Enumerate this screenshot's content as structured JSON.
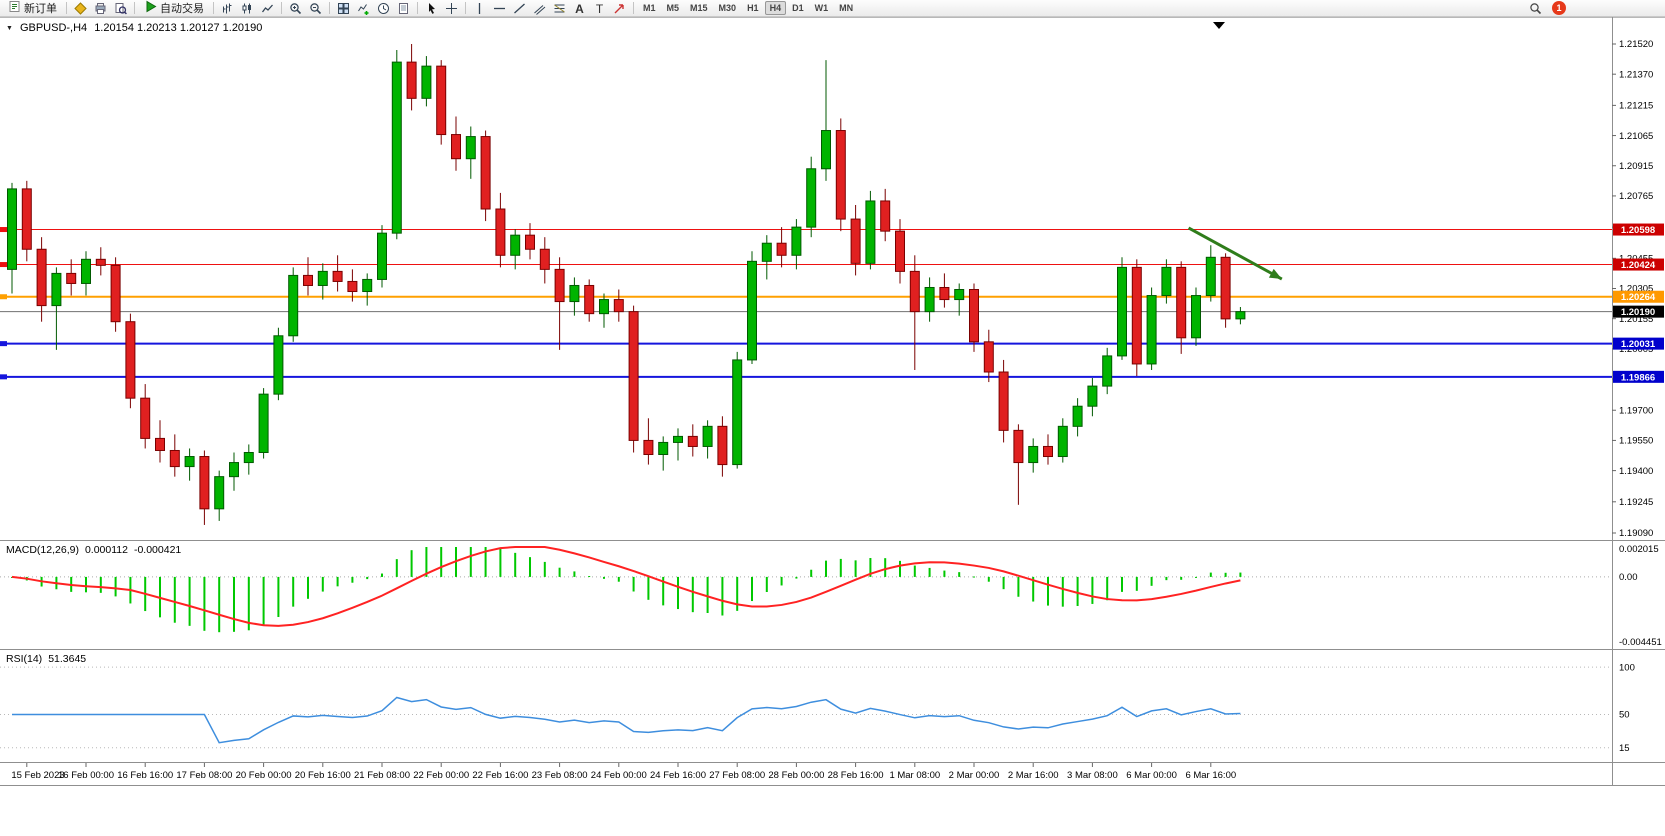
{
  "toolbar": {
    "new_order_label": "新订单",
    "autotrade_label": "自动交易",
    "timeframes": [
      "M1",
      "M5",
      "M15",
      "M30",
      "H1",
      "H4",
      "D1",
      "W1",
      "MN"
    ],
    "active_timeframe": "H4",
    "notification_count": "1",
    "items": [
      {
        "type": "button",
        "name": "new-order-button",
        "icon": "new-order-icon",
        "label_key": "new_order_label"
      },
      {
        "type": "sep"
      },
      {
        "type": "icon",
        "name": "favorites-icon"
      },
      {
        "type": "icon",
        "name": "print-icon"
      },
      {
        "type": "icon",
        "name": "preview-icon"
      },
      {
        "type": "sep"
      },
      {
        "type": "button",
        "name": "autotrade-button",
        "icon": "play-icon",
        "label_key": "autotrade_label"
      },
      {
        "type": "sep"
      },
      {
        "type": "icon",
        "name": "bar-chart-icon"
      },
      {
        "type": "icon",
        "name": "candlestick-chart-icon"
      },
      {
        "type": "icon",
        "name": "line-chart-icon"
      },
      {
        "type": "sep"
      },
      {
        "type": "icon",
        "name": "zoom-in-icon"
      },
      {
        "type": "icon",
        "name": "zoom-out-icon"
      },
      {
        "type": "sep"
      },
      {
        "type": "icon",
        "name": "tile-windows-icon"
      },
      {
        "type": "icon",
        "name": "indicators-icon"
      },
      {
        "type": "icon",
        "name": "periods-icon"
      },
      {
        "type": "icon",
        "name": "templates-icon"
      },
      {
        "type": "sep"
      },
      {
        "type": "icon",
        "name": "cursor-icon"
      },
      {
        "type": "icon",
        "name": "crosshair-icon"
      },
      {
        "type": "sep"
      },
      {
        "type": "icon",
        "name": "vertical-line-icon"
      },
      {
        "type": "icon",
        "name": "horizontal-line-icon"
      },
      {
        "type": "icon",
        "name": "trendline-icon"
      },
      {
        "type": "icon",
        "name": "channel-icon"
      },
      {
        "type": "icon",
        "name": "fibonacci-icon"
      },
      {
        "type": "icon",
        "name": "text-icon"
      },
      {
        "type": "icon",
        "name": "label-icon"
      },
      {
        "type": "icon",
        "name": "arrows-icon"
      },
      {
        "type": "sep"
      }
    ]
  },
  "chart": {
    "symbol": "GBPUSD-,H4",
    "ohlc": "1.20154 1.20213 1.20127 1.20190"
  },
  "chart_data": {
    "type": "candlestick",
    "symbol": "GBPUSD",
    "timeframe": "H4",
    "x_labels": [
      "15 Feb 2023",
      "16 Feb 00:00",
      "16 Feb 16:00",
      "17 Feb 08:00",
      "20 Feb 00:00",
      "20 Feb 16:00",
      "21 Feb 08:00",
      "22 Feb 00:00",
      "22 Feb 16:00",
      "23 Feb 08:00",
      "24 Feb 00:00",
      "24 Feb 16:00",
      "27 Feb 08:00",
      "28 Feb 00:00",
      "28 Feb 16:00",
      "1 Mar 08:00",
      "2 Mar 00:00",
      "2 Mar 16:00",
      "3 Mar 08:00",
      "6 Mar 00:00",
      "6 Mar 16:00"
    ],
    "label_start_index": 1,
    "label_every": 4,
    "candles": [
      [
        1.204,
        1.2083,
        1.2028,
        1.208
      ],
      [
        1.208,
        1.2084,
        1.2044,
        1.205
      ],
      [
        1.205,
        1.2056,
        1.2014,
        1.2022
      ],
      [
        1.2022,
        1.2041,
        1.2,
        1.2038
      ],
      [
        1.2038,
        1.2045,
        1.2027,
        1.2033
      ],
      [
        1.2033,
        1.2049,
        1.2027,
        1.2045
      ],
      [
        1.2045,
        1.2051,
        1.2037,
        1.2042
      ],
      [
        1.2042,
        1.2046,
        1.2009,
        1.2014
      ],
      [
        1.2014,
        1.2018,
        1.1971,
        1.1976
      ],
      [
        1.1976,
        1.1983,
        1.1951,
        1.1956
      ],
      [
        1.1956,
        1.1965,
        1.1944,
        1.195
      ],
      [
        1.195,
        1.1958,
        1.1937,
        1.1942
      ],
      [
        1.1942,
        1.1951,
        1.1935,
        1.1947
      ],
      [
        1.1947,
        1.195,
        1.1913,
        1.1921
      ],
      [
        1.1921,
        1.194,
        1.1915,
        1.1937
      ],
      [
        1.1937,
        1.1949,
        1.193,
        1.1944
      ],
      [
        1.1944,
        1.1953,
        1.1938,
        1.1949
      ],
      [
        1.1949,
        1.1981,
        1.1946,
        1.1978
      ],
      [
        1.1978,
        1.2011,
        1.1975,
        1.2007
      ],
      [
        1.2007,
        1.2041,
        1.2004,
        1.2037
      ],
      [
        1.2037,
        1.2046,
        1.2027,
        1.2032
      ],
      [
        1.2032,
        1.2043,
        1.2025,
        1.2039
      ],
      [
        1.2039,
        1.2047,
        1.2029,
        1.2034
      ],
      [
        1.2034,
        1.204,
        1.2024,
        1.2029
      ],
      [
        1.2029,
        1.2038,
        1.2022,
        1.2035
      ],
      [
        1.2035,
        1.2062,
        1.2031,
        1.2058
      ],
      [
        1.2058,
        1.2149,
        1.2055,
        1.2143
      ],
      [
        1.2143,
        1.2152,
        1.2119,
        1.2125
      ],
      [
        1.2125,
        1.2146,
        1.2121,
        1.2141
      ],
      [
        1.2141,
        1.2144,
        1.2102,
        1.2107
      ],
      [
        1.2107,
        1.2116,
        1.2089,
        1.2095
      ],
      [
        1.2095,
        1.2111,
        1.2085,
        1.2106
      ],
      [
        1.2106,
        1.2109,
        1.2064,
        1.207
      ],
      [
        1.207,
        1.2078,
        1.2041,
        1.2047
      ],
      [
        1.2047,
        1.206,
        1.204,
        1.2057
      ],
      [
        1.2057,
        1.2063,
        1.2045,
        1.205
      ],
      [
        1.205,
        1.2056,
        1.2033,
        1.204
      ],
      [
        1.204,
        1.2046,
        1.2,
        1.2024
      ],
      [
        1.2024,
        1.2036,
        1.2017,
        1.2032
      ],
      [
        1.2032,
        1.2035,
        1.2014,
        1.2018
      ],
      [
        1.2018,
        1.2028,
        1.2011,
        1.2025
      ],
      [
        1.2025,
        1.203,
        1.2014,
        1.2019
      ],
      [
        1.2019,
        1.2022,
        1.1949,
        1.1955
      ],
      [
        1.1955,
        1.1966,
        1.1943,
        1.1948
      ],
      [
        1.1948,
        1.1957,
        1.194,
        1.1954
      ],
      [
        1.1954,
        1.1961,
        1.1945,
        1.1957
      ],
      [
        1.1957,
        1.1963,
        1.1947,
        1.1952
      ],
      [
        1.1952,
        1.1965,
        1.1946,
        1.1962
      ],
      [
        1.1962,
        1.1967,
        1.1937,
        1.1943
      ],
      [
        1.1943,
        1.1999,
        1.1941,
        1.1995
      ],
      [
        1.1995,
        1.2049,
        1.1993,
        1.2044
      ],
      [
        1.2044,
        1.2057,
        1.2035,
        1.2053
      ],
      [
        1.2053,
        1.2061,
        1.2041,
        1.2047
      ],
      [
        1.2047,
        1.2065,
        1.204,
        1.2061
      ],
      [
        1.2061,
        1.2096,
        1.2056,
        1.209
      ],
      [
        1.209,
        1.2144,
        1.2084,
        1.2109
      ],
      [
        1.2109,
        1.2115,
        1.2059,
        1.2065
      ],
      [
        1.2065,
        1.2072,
        1.2037,
        1.2043
      ],
      [
        1.2043,
        1.2079,
        1.204,
        1.2074
      ],
      [
        1.2074,
        1.208,
        1.2054,
        1.2059
      ],
      [
        1.2059,
        1.2065,
        1.2033,
        1.2039
      ],
      [
        1.2039,
        1.2047,
        1.199,
        1.2019
      ],
      [
        1.2019,
        1.2036,
        1.2014,
        1.2031
      ],
      [
        1.2031,
        1.2038,
        1.2021,
        1.2025
      ],
      [
        1.2025,
        1.2033,
        1.2017,
        1.203
      ],
      [
        1.203,
        1.2033,
        1.1999,
        1.2004
      ],
      [
        1.2004,
        1.201,
        1.1984,
        1.1989
      ],
      [
        1.1989,
        1.1995,
        1.1954,
        1.196
      ],
      [
        1.196,
        1.1963,
        1.1923,
        1.1944
      ],
      [
        1.1944,
        1.1956,
        1.1939,
        1.1952
      ],
      [
        1.1952,
        1.1958,
        1.1943,
        1.1947
      ],
      [
        1.1947,
        1.1966,
        1.1944,
        1.1962
      ],
      [
        1.1962,
        1.1976,
        1.1957,
        1.1972
      ],
      [
        1.1972,
        1.1986,
        1.1967,
        1.1982
      ],
      [
        1.1982,
        1.2001,
        1.1978,
        1.1997
      ],
      [
        1.1997,
        1.2046,
        1.1995,
        1.2041
      ],
      [
        1.2041,
        1.2045,
        1.1987,
        1.1993
      ],
      [
        1.1993,
        1.2031,
        1.199,
        1.2027
      ],
      [
        1.2027,
        1.2045,
        1.2023,
        1.2041
      ],
      [
        1.2041,
        1.2044,
        1.1998,
        1.2006
      ],
      [
        1.2006,
        1.2031,
        1.2002,
        1.2027
      ],
      [
        1.2027,
        1.2052,
        1.2024,
        1.2046
      ],
      [
        1.2046,
        1.2048,
        1.2011,
        1.20154
      ],
      [
        1.20154,
        1.20213,
        1.20127,
        1.2019
      ]
    ],
    "y_axis": {
      "ticks": [
        "1.21520",
        "1.21370",
        "1.21215",
        "1.21065",
        "1.20915",
        "1.20765",
        "1.20610",
        "1.20455",
        "1.20305",
        "1.20155",
        "1.20005",
        "1.19855",
        "1.19700",
        "1.19550",
        "1.19400",
        "1.19245",
        "1.19090"
      ]
    },
    "hlines": [
      {
        "price": 1.20598,
        "color": "#EE1111",
        "width": 1,
        "label": "1.20598",
        "box": "#CC0000"
      },
      {
        "price": 1.20424,
        "color": "#EE1111",
        "width": 1,
        "label": "1.20424",
        "box": "#CC0000"
      },
      {
        "price": 1.20264,
        "color": "#FFA000",
        "width": 2,
        "label": "1.20264",
        "box": "#FF9900"
      },
      {
        "price": 1.20031,
        "color": "#1515DD",
        "width": 2,
        "label": "1.20031",
        "box": "#0000CC"
      },
      {
        "price": 1.19866,
        "color": "#1515DD",
        "width": 2,
        "label": "1.19866",
        "box": "#0000CC"
      }
    ],
    "current_price": {
      "price": 1.2019,
      "label": "1.20190",
      "box": "#000000",
      "color": "#707070"
    },
    "arrow": {
      "bar1": 79.5,
      "price1": 1.20606,
      "bar2": 85.8,
      "price2": 1.20352,
      "color": "#2F7D1B"
    },
    "colors": {
      "up": "#00B400",
      "up_edge": "#005a00",
      "down": "#E02020",
      "down_edge": "#7a0000"
    },
    "macd": {
      "label": "MACD(12,26,9)",
      "value": "0.000112",
      "signal_value": "-0.000421",
      "fast": 12,
      "slow": 26,
      "signal": 9,
      "axis_labels": [
        "0.002015",
        "0.00",
        "-0.004451"
      ],
      "range": [
        -0.004451,
        0.002015
      ],
      "hist_color": "#00C800",
      "signal_color": "#FF2222"
    },
    "rsi": {
      "label": "RSI(14)",
      "value": "51.3645",
      "period": 14,
      "levels": [
        100,
        50,
        15
      ],
      "axis_labels": [
        "100",
        "50",
        "15"
      ],
      "line_color": "#3E8EDE"
    }
  }
}
